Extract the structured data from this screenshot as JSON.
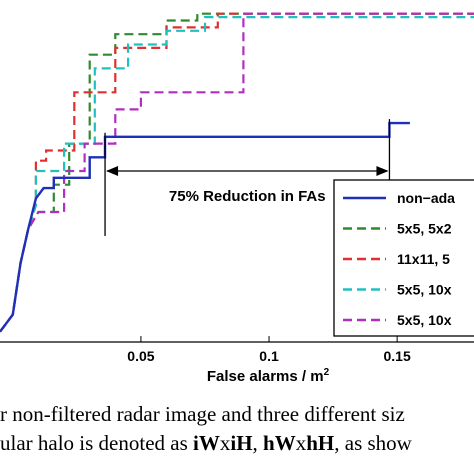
{
  "chart_data": {
    "type": "line",
    "xlabel": "False alarms / m",
    "xlabel_sup": "2",
    "xlim": [
      -0.005,
      0.18
    ],
    "ylim": [
      0,
      1
    ],
    "x_ticks": [
      0.05,
      0.1,
      0.15
    ],
    "x_tick_labels": [
      "0.05",
      "0.1",
      "0.15"
    ],
    "grid": false,
    "legend_position": "bottom-right",
    "annotation": {
      "text": "75% Reduction in FAs",
      "from_x": 0.036,
      "to_x": 0.147,
      "at_y": 0.5
    },
    "series": [
      {
        "name": "non−ada",
        "color": "#1f2fb8",
        "dash": "solid",
        "x": [
          -0.005,
          0.0,
          0.003,
          0.006,
          0.009,
          0.012,
          0.016,
          0.016,
          0.023,
          0.03,
          0.03,
          0.036,
          0.036,
          0.147,
          0.147,
          0.155
        ],
        "y": [
          0.03,
          0.08,
          0.23,
          0.33,
          0.42,
          0.45,
          0.45,
          0.48,
          0.48,
          0.48,
          0.54,
          0.54,
          0.6,
          0.6,
          0.64,
          0.64
        ]
      },
      {
        "name": "5x5, 5x2",
        "color": "#2e8a2e",
        "dash": "dashed",
        "x": [
          -0.005,
          0.0,
          0.003,
          0.006,
          0.01,
          0.016,
          0.016,
          0.022,
          0.022,
          0.03,
          0.03,
          0.04,
          0.04,
          0.06,
          0.06,
          0.072,
          0.072,
          0.18
        ],
        "y": [
          0.03,
          0.08,
          0.23,
          0.33,
          0.38,
          0.38,
          0.46,
          0.46,
          0.58,
          0.58,
          0.84,
          0.84,
          0.9,
          0.9,
          0.94,
          0.94,
          0.96,
          0.96
        ]
      },
      {
        "name": "11x11, 5",
        "color": "#e03030",
        "dash": "dashed",
        "x": [
          -0.005,
          0.0,
          0.003,
          0.006,
          0.009,
          0.009,
          0.013,
          0.013,
          0.024,
          0.024,
          0.04,
          0.04,
          0.06,
          0.06,
          0.08,
          0.08,
          0.18
        ],
        "y": [
          0.03,
          0.08,
          0.23,
          0.33,
          0.4,
          0.53,
          0.53,
          0.56,
          0.56,
          0.73,
          0.73,
          0.86,
          0.86,
          0.92,
          0.92,
          0.96,
          0.96
        ]
      },
      {
        "name": "5x5, 10x",
        "color": "#20c0c0",
        "dash": "dashed",
        "x": [
          -0.005,
          0.0,
          0.003,
          0.006,
          0.009,
          0.009,
          0.02,
          0.02,
          0.032,
          0.032,
          0.045,
          0.045,
          0.06,
          0.06,
          0.075,
          0.075,
          0.18
        ],
        "y": [
          0.03,
          0.08,
          0.23,
          0.33,
          0.4,
          0.5,
          0.5,
          0.58,
          0.58,
          0.8,
          0.8,
          0.87,
          0.87,
          0.91,
          0.91,
          0.95,
          0.95
        ]
      },
      {
        "name": "5x5, 10x",
        "color": "#b02fc0",
        "dash": "dashed",
        "x": [
          -0.005,
          0.0,
          0.003,
          0.006,
          0.01,
          0.02,
          0.02,
          0.028,
          0.028,
          0.04,
          0.04,
          0.05,
          0.05,
          0.09,
          0.09,
          0.18
        ],
        "y": [
          0.03,
          0.08,
          0.23,
          0.33,
          0.38,
          0.38,
          0.5,
          0.5,
          0.58,
          0.58,
          0.68,
          0.68,
          0.73,
          0.73,
          0.96,
          0.96
        ]
      }
    ]
  },
  "caption": {
    "line1": "r non-filtered radar image and three different siz",
    "line2_prefix": "ular halo is denoted as ",
    "line2_b1": "iW",
    "line2_x1": "x",
    "line2_b2": "iH",
    "line2_sep": ", ",
    "line2_b3": "hW",
    "line2_x2": "x",
    "line2_b4": "hH",
    "line2_suffix": ", as show"
  }
}
